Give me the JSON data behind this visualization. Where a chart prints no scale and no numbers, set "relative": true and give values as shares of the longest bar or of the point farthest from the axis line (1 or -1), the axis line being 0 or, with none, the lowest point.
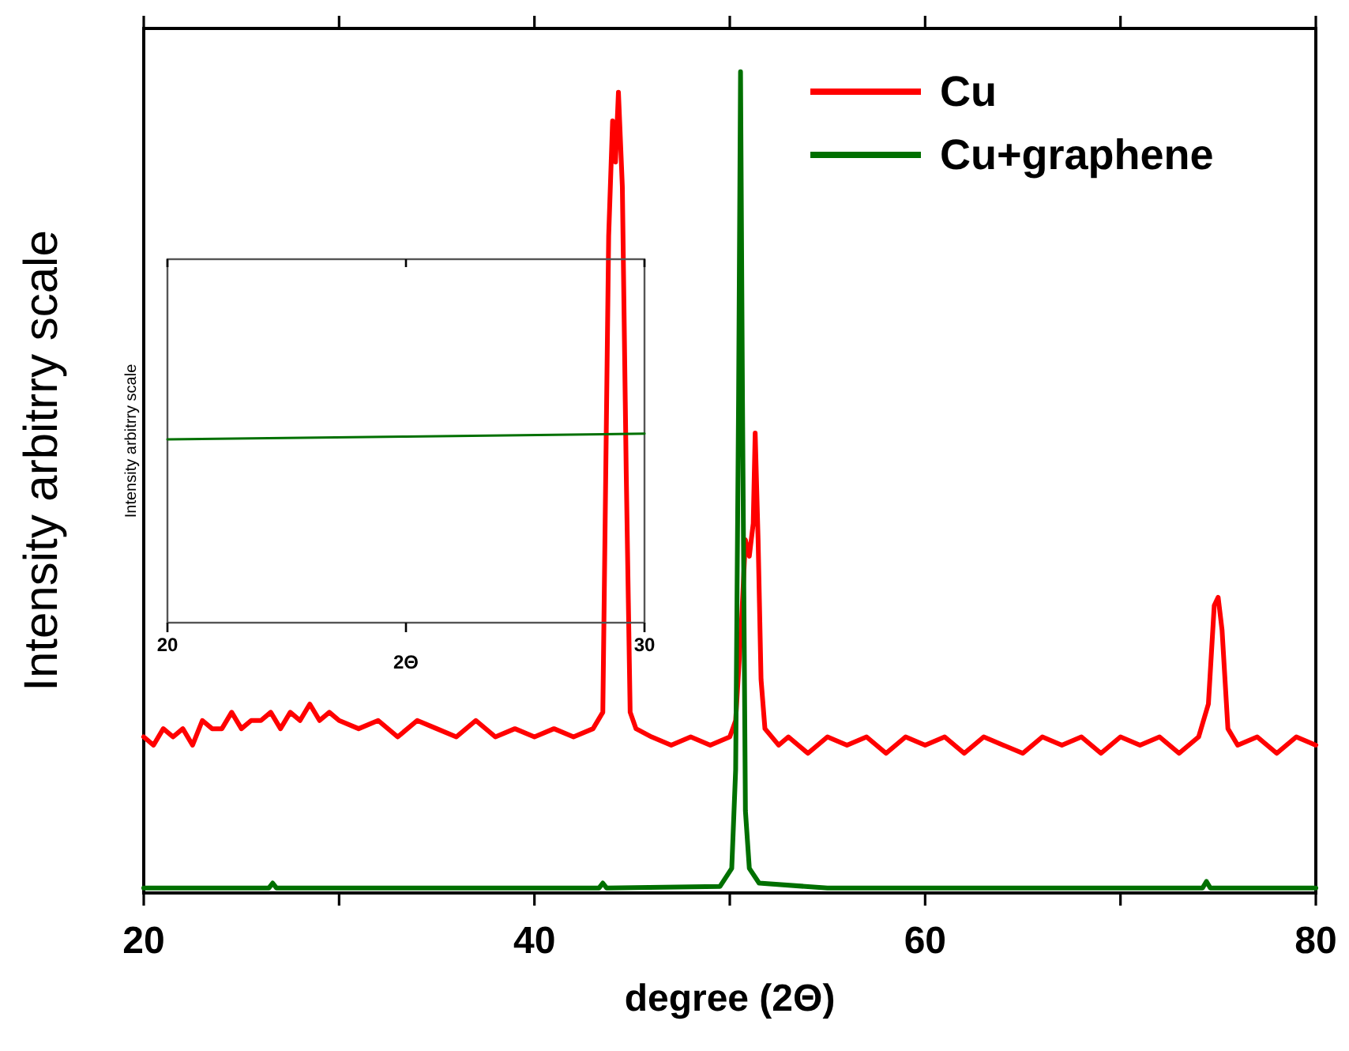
{
  "chart_data": [
    {
      "type": "line",
      "xlabel": "degree (2Θ)",
      "ylabel": "Intensity  arbitrry scale",
      "relative": true,
      "xlim": [
        20,
        80
      ],
      "xticks": [
        20,
        {
          "value": 30,
          "label": null
        },
        40,
        {
          "value": 50,
          "label": null
        },
        60,
        {
          "value": 70,
          "label": null
        },
        80
      ],
      "legend": "top right",
      "grid": false,
      "series": [
        {
          "name": "Cu",
          "color": "#ff0000",
          "x": [
            20,
            20.5,
            21,
            21.5,
            22,
            22.5,
            23,
            23.5,
            24,
            24.5,
            25,
            25.5,
            26,
            26.5,
            27,
            27.5,
            28,
            28.5,
            29,
            29.5,
            30,
            31,
            32,
            33,
            34,
            35,
            36,
            37,
            38,
            39,
            40,
            41,
            42,
            43,
            43.5,
            43.8,
            44,
            44.15,
            44.3,
            44.5,
            44.7,
            44.9,
            45.2,
            46,
            47,
            48,
            49,
            50,
            50.3,
            50.6,
            50.8,
            51,
            51.2,
            51.3,
            51.45,
            51.6,
            51.8,
            52.5,
            53,
            54,
            55,
            56,
            57,
            58,
            59,
            60,
            61,
            62,
            63,
            64,
            65,
            66,
            67,
            68,
            69,
            70,
            71,
            72,
            73,
            74,
            74.5,
            74.8,
            75,
            75.2,
            75.5,
            76,
            77,
            78,
            79,
            80
          ],
          "values": [
            0.19,
            0.18,
            0.2,
            0.19,
            0.2,
            0.18,
            0.21,
            0.2,
            0.2,
            0.22,
            0.2,
            0.21,
            0.21,
            0.22,
            0.2,
            0.22,
            0.21,
            0.23,
            0.21,
            0.22,
            0.21,
            0.2,
            0.21,
            0.19,
            0.21,
            0.2,
            0.19,
            0.21,
            0.19,
            0.2,
            0.19,
            0.2,
            0.19,
            0.2,
            0.22,
            0.8,
            0.94,
            0.89,
            0.975,
            0.86,
            0.51,
            0.22,
            0.2,
            0.19,
            0.18,
            0.19,
            0.18,
            0.19,
            0.21,
            0.33,
            0.43,
            0.41,
            0.45,
            0.56,
            0.43,
            0.26,
            0.2,
            0.18,
            0.19,
            0.17,
            0.19,
            0.18,
            0.19,
            0.17,
            0.19,
            0.18,
            0.19,
            0.17,
            0.19,
            0.18,
            0.17,
            0.19,
            0.18,
            0.19,
            0.17,
            0.19,
            0.18,
            0.19,
            0.17,
            0.19,
            0.23,
            0.35,
            0.36,
            0.32,
            0.2,
            0.18,
            0.19,
            0.17,
            0.19,
            0.18
          ]
        },
        {
          "name": "Cu+graphene",
          "color": "#007000",
          "x": [
            20,
            26.4,
            26.6,
            26.8,
            35,
            43.3,
            43.5,
            43.7,
            49.5,
            50.1,
            50.3,
            50.45,
            50.55,
            50.65,
            50.8,
            51,
            51.5,
            55,
            60,
            74.2,
            74.4,
            74.6,
            80
          ],
          "values": [
            0.006,
            0.006,
            0.012,
            0.006,
            0.006,
            0.006,
            0.012,
            0.006,
            0.008,
            0.03,
            0.15,
            0.6,
            1.0,
            0.6,
            0.1,
            0.03,
            0.012,
            0.006,
            0.006,
            0.006,
            0.014,
            0.006,
            0.006
          ]
        }
      ]
    },
    {
      "type": "line",
      "xlabel": "2Θ",
      "ylabel": "Intensity  arbitrry scale",
      "relative": true,
      "xlim": [
        20,
        30
      ],
      "xticks": [
        20,
        {
          "value": 25,
          "label": null
        },
        30
      ],
      "grid": false,
      "series": [
        {
          "color": "#007000",
          "x": [
            20,
            25,
            30
          ],
          "values": [
            0.97,
            0.985,
            1
          ]
        }
      ]
    }
  ]
}
